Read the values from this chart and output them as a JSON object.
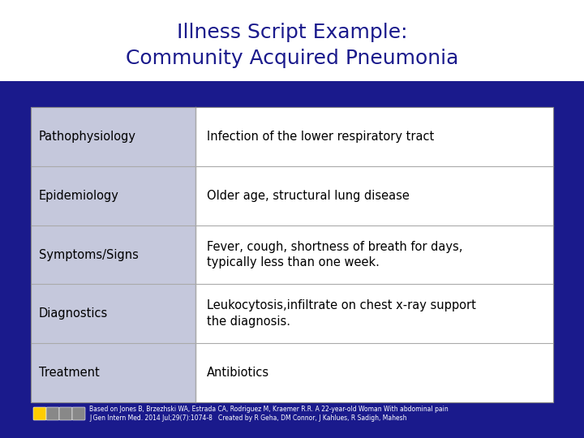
{
  "title_line1": "Illness Script Example:",
  "title_line2": "Community Acquired Pneumonia",
  "title_color": "#1a1a8c",
  "background_color": "#1a1a8c",
  "left_col_bg": "#c5c8dc",
  "right_col_bg": "#ffffff",
  "grid_color": "#aaaaaa",
  "rows": [
    {
      "label": "Pathophysiology",
      "content": "Infection of the lower respiratory tract"
    },
    {
      "label": "Epidemiology",
      "content": "Older age, structural lung disease"
    },
    {
      "label": "Symptoms/Signs",
      "content": "Fever, cough, shortness of breath for days,\ntypically less than one week."
    },
    {
      "label": "Diagnostics",
      "content": "Leukocytosis,infiltrate on chest x-ray support\nthe diagnosis."
    },
    {
      "label": "Treatment",
      "content": "Antibiotics"
    }
  ],
  "footer_text": "Based on Jones B, Brzezhski WA, Estrada CA, Rodriguez M, Kraemer R.R. A 22-year-old Woman With abdominal pain\nJ Gen Intern Med. 2014 Jul;29(7):1074-8   Created by R Geha, DM Connor, J Kahlues, R Sadigh, Mahesh",
  "footer_color": "#ffffff",
  "text_color": "#000000",
  "label_fontsize": 10.5,
  "content_fontsize": 10.5,
  "title_fontsize": 18
}
